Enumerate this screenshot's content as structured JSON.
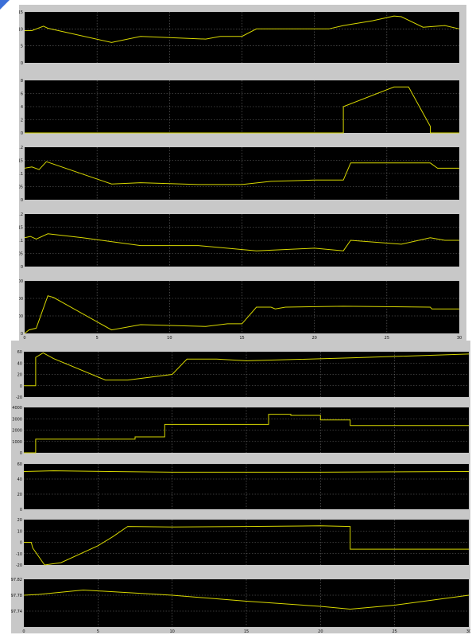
{
  "colors": {
    "frame": "#c8c8c8",
    "plot_background": "#000000",
    "grid": "#6e6e6e",
    "trace": "#d8d800",
    "tick_text": "#111111",
    "corner_accent": "#3b6fd8"
  },
  "chart_data": [
    {
      "type": "line",
      "title": "",
      "xlabel": "",
      "ylabel": "",
      "xlim": [
        0,
        30
      ],
      "ylim": [
        0,
        15
      ],
      "grid": true,
      "legend": "none",
      "yticks": [
        "0",
        "5",
        "10",
        "15"
      ],
      "xticks": [],
      "series": [
        {
          "x": [
            0,
            0.5,
            1.3,
            1.6,
            6,
            8,
            12.5,
            13.5,
            15,
            16,
            19,
            21,
            22,
            24,
            25.5,
            26,
            27.5,
            29,
            30
          ],
          "y": [
            9.5,
            9.5,
            10.8,
            10.2,
            6,
            7.8,
            7,
            7.8,
            7.8,
            10,
            10,
            10,
            11,
            12.4,
            13.8,
            13.6,
            10.5,
            11,
            10
          ]
        }
      ]
    },
    {
      "type": "line",
      "title": "",
      "xlabel": "",
      "ylabel": "",
      "xlim": [
        0,
        30
      ],
      "ylim": [
        0,
        8
      ],
      "grid": true,
      "legend": "none",
      "yticks": [
        "0",
        "2",
        "4",
        "6",
        "8"
      ],
      "xticks": [],
      "series": [
        {
          "x": [
            0,
            22,
            22,
            25.5,
            26.5,
            28,
            28,
            30
          ],
          "y": [
            0,
            0,
            4,
            7,
            7,
            1,
            0,
            0
          ]
        }
      ]
    },
    {
      "type": "line",
      "title": "",
      "xlabel": "",
      "ylabel": "",
      "xlim": [
        0,
        30
      ],
      "ylim": [
        0,
        0.2
      ],
      "grid": true,
      "legend": "none",
      "yticks": [
        "0",
        "0.05",
        "0.1",
        "0.15",
        "0.2"
      ],
      "xticks": [],
      "series": [
        {
          "x": [
            0,
            0.5,
            1,
            1.5,
            6,
            8,
            12,
            15,
            17,
            20,
            22,
            22.5,
            28,
            28.5,
            30
          ],
          "y": [
            0.12,
            0.125,
            0.115,
            0.145,
            0.06,
            0.065,
            0.058,
            0.058,
            0.07,
            0.075,
            0.075,
            0.14,
            0.14,
            0.12,
            0.12
          ]
        }
      ]
    },
    {
      "type": "line",
      "title": "",
      "xlabel": "",
      "ylabel": "",
      "xlim": [
        0,
        30
      ],
      "ylim": [
        0,
        0.2
      ],
      "grid": true,
      "legend": "none",
      "yticks": [
        "0",
        "0.05",
        "0.1",
        "0.15",
        "0.2"
      ],
      "xticks": [],
      "series": [
        {
          "x": [
            0,
            0.4,
            0.8,
            1.6,
            4,
            8,
            12,
            16,
            20,
            22,
            22.5,
            26,
            28,
            29,
            30
          ],
          "y": [
            0.11,
            0.115,
            0.105,
            0.125,
            0.11,
            0.08,
            0.08,
            0.06,
            0.07,
            0.06,
            0.1,
            0.085,
            0.11,
            0.1,
            0.1
          ]
        }
      ]
    },
    {
      "type": "line",
      "title": "",
      "xlabel": "",
      "ylabel": "",
      "xlim": [
        0,
        30
      ],
      "ylim": [
        0,
        600
      ],
      "grid": true,
      "legend": "none",
      "yticks": [
        "0",
        "200",
        "400",
        "600"
      ],
      "xticks": [
        "0",
        "5",
        "10",
        "15",
        "20",
        "25",
        "30"
      ],
      "series": [
        {
          "x": [
            0,
            0.3,
            0.8,
            1.6,
            2,
            6,
            8,
            12.5,
            14,
            15,
            16,
            17,
            17.3,
            18,
            22,
            28,
            28.1,
            30
          ],
          "y": [
            0,
            40,
            60,
            430,
            410,
            40,
            100,
            80,
            110,
            110,
            300,
            300,
            280,
            300,
            310,
            300,
            280,
            280
          ]
        }
      ]
    },
    {
      "type": "line",
      "title": "",
      "xlabel": "",
      "ylabel": "",
      "xlim": [
        0,
        30
      ],
      "ylim": [
        -20,
        60
      ],
      "grid": true,
      "legend": "none",
      "yticks": [
        "-20",
        "0",
        "20",
        "40",
        "60"
      ],
      "xticks": [],
      "series": [
        {
          "x": [
            0,
            0.8,
            0.8,
            1.3,
            2,
            5.5,
            7,
            10,
            11,
            13,
            15,
            22,
            30
          ],
          "y": [
            0,
            0,
            50,
            58,
            48,
            10,
            10,
            20,
            47,
            47,
            44,
            49,
            56
          ]
        }
      ]
    },
    {
      "type": "line",
      "title": "",
      "xlabel": "",
      "ylabel": "",
      "xlim": [
        0,
        30
      ],
      "ylim": [
        0,
        4000
      ],
      "grid": true,
      "legend": "none",
      "yticks": [
        "0",
        "1000",
        "2000",
        "3000",
        "4000"
      ],
      "xticks": [],
      "series": [
        {
          "x": [
            0,
            0.8,
            0.8,
            7.5,
            7.5,
            9.5,
            9.5,
            16.5,
            16.5,
            18,
            18,
            20,
            20,
            22,
            22,
            30
          ],
          "y": [
            0,
            0,
            1200,
            1200,
            1400,
            1400,
            2500,
            2500,
            3400,
            3400,
            3300,
            3300,
            2900,
            2900,
            2400,
            2400
          ]
        }
      ]
    },
    {
      "type": "line",
      "title": "",
      "xlabel": "",
      "ylabel": "",
      "xlim": [
        0,
        30
      ],
      "ylim": [
        0,
        60
      ],
      "grid": true,
      "legend": "none",
      "yticks": [
        "0",
        "20",
        "40",
        "60"
      ],
      "xticks": [],
      "series": [
        {
          "x": [
            0,
            2,
            10,
            20,
            30
          ],
          "y": [
            50,
            51,
            49,
            49,
            50
          ]
        }
      ]
    },
    {
      "type": "line",
      "title": "",
      "xlabel": "",
      "ylabel": "",
      "xlim": [
        0,
        30
      ],
      "ylim": [
        -20,
        20
      ],
      "grid": true,
      "legend": "none",
      "yticks": [
        "-20",
        "-10",
        "0",
        "10",
        "20"
      ],
      "xticks": [],
      "series": [
        {
          "x": [
            0,
            0.5,
            0.6,
            1.4,
            2.5,
            5,
            6,
            7,
            10,
            15,
            20,
            22,
            22,
            30
          ],
          "y": [
            0,
            0,
            -5,
            -20,
            -18,
            -3,
            5,
            14,
            13.5,
            14,
            14.5,
            14,
            -6,
            -6
          ]
        }
      ]
    },
    {
      "type": "line",
      "title": "",
      "xlabel": "",
      "ylabel": "",
      "xlim": [
        0,
        30
      ],
      "ylim": [
        97.7,
        97.82
      ],
      "grid": true,
      "legend": "none",
      "yticks": [
        "97.74",
        "97.78",
        "97.82"
      ],
      "xticks": [
        "0",
        "5",
        "10",
        "15",
        "20",
        "25",
        "30"
      ],
      "series": [
        {
          "x": [
            0,
            1,
            4,
            10,
            15,
            20,
            22,
            25,
            30
          ],
          "y": [
            97.78,
            97.782,
            97.793,
            97.78,
            97.765,
            97.752,
            97.745,
            97.755,
            97.78
          ]
        }
      ]
    }
  ]
}
